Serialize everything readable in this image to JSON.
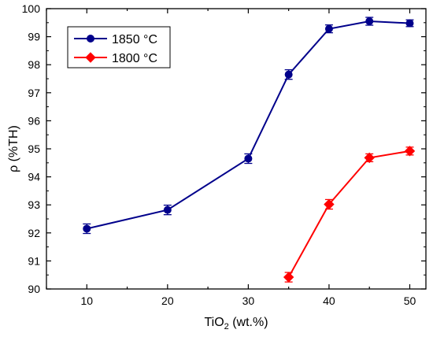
{
  "chart_data": {
    "type": "line",
    "xlabel": {
      "base": "TiO",
      "sub": "2",
      "rest": " (wt.%)"
    },
    "ylabel": "ρ  (%TH)",
    "xlim": [
      5,
      52
    ],
    "ylim": [
      90,
      100
    ],
    "x_ticks": [
      10,
      20,
      30,
      40,
      50
    ],
    "y_ticks": [
      90,
      91,
      92,
      93,
      94,
      95,
      96,
      97,
      98,
      99,
      100
    ],
    "grid": false,
    "legend_position": "top-left",
    "series": [
      {
        "name": "1850 °C",
        "color": "#00008b",
        "marker": "circle",
        "x": [
          10,
          20,
          30,
          35,
          40,
          45,
          50
        ],
        "y": [
          92.15,
          92.82,
          94.65,
          97.65,
          99.28,
          99.55,
          99.48
        ],
        "err": [
          0.17,
          0.17,
          0.17,
          0.17,
          0.14,
          0.14,
          0.12
        ]
      },
      {
        "name": "1800 °C",
        "color": "#ff0000",
        "marker": "diamond",
        "x": [
          35,
          40,
          45,
          50
        ],
        "y": [
          90.42,
          93.02,
          94.68,
          94.92
        ],
        "err": [
          0.17,
          0.17,
          0.14,
          0.14
        ]
      }
    ]
  }
}
